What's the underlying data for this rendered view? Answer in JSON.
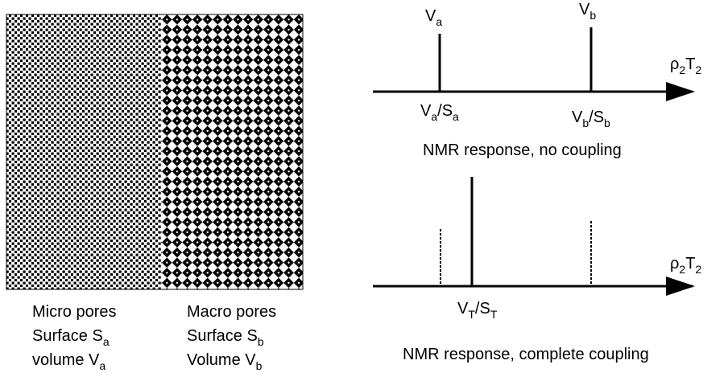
{
  "left_panel": {
    "micro": {
      "title": "Micro pores",
      "surface": [
        "Surface S",
        "a"
      ],
      "volume": [
        "volume V",
        "a"
      ]
    },
    "macro": {
      "title": "Macro pores",
      "surface": [
        "Surface S",
        "b"
      ],
      "volume": [
        "Volume V",
        "b"
      ]
    }
  },
  "no_coupling": {
    "peak_a": [
      "V",
      "a"
    ],
    "peak_b": [
      "V",
      "b"
    ],
    "axis_label": [
      "ρ",
      "2",
      "T",
      "2"
    ],
    "tick_a": [
      "V",
      "a",
      "/S",
      "a"
    ],
    "tick_b": [
      "V",
      "b",
      "/S",
      "b"
    ],
    "caption": "NMR response, no coupling"
  },
  "complete_coupling": {
    "peak": [
      "V",
      "T",
      "/S",
      "T"
    ],
    "axis_label": [
      "ρ",
      "2",
      "T",
      "2"
    ],
    "caption": "NMR response, complete coupling"
  }
}
